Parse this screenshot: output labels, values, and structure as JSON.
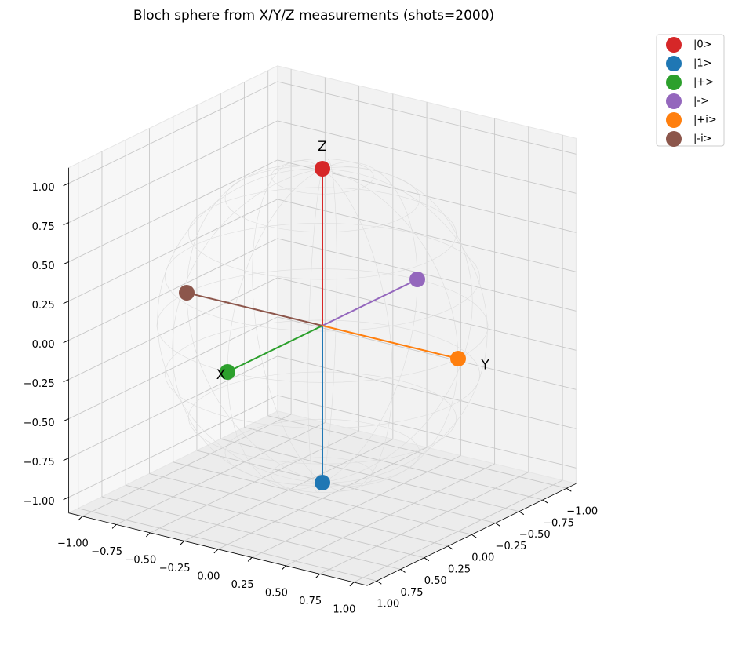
{
  "chart_data": {
    "type": "scatter3d",
    "title": "Bloch sphere from X/Y/Z measurements (shots=2000)",
    "axis_labels": [
      "X",
      "Y",
      "Z"
    ],
    "series": [
      {
        "name": "|0>",
        "color": "#d62728",
        "x": [
          0
        ],
        "y": [
          0
        ],
        "z": [
          1
        ]
      },
      {
        "name": "|1>",
        "color": "#1f77b4",
        "x": [
          0
        ],
        "y": [
          0
        ],
        "z": [
          -1
        ]
      },
      {
        "name": "|+>",
        "color": "#2ca02c",
        "x": [
          1
        ],
        "y": [
          0
        ],
        "z": [
          0
        ]
      },
      {
        "name": "|->",
        "color": "#9467bd",
        "x": [
          -1
        ],
        "y": [
          0
        ],
        "z": [
          0
        ]
      },
      {
        "name": "|+i>",
        "color": "#ff7f0e",
        "x": [
          0
        ],
        "y": [
          1
        ],
        "z": [
          0
        ]
      },
      {
        "name": "|-i>",
        "color": "#8c564b",
        "x": [
          0
        ],
        "y": [
          -1
        ],
        "z": [
          0
        ]
      }
    ],
    "xlim": [
      -1.1,
      1.1
    ],
    "ylim": [
      -1.1,
      1.1
    ],
    "zlim": [
      -1.1,
      1.1
    ],
    "xticks": [
      {
        "value": -1,
        "label": "−1.00"
      },
      {
        "value": -0.75,
        "label": "−0.75"
      },
      {
        "value": -0.5,
        "label": "−0.50"
      },
      {
        "value": -0.25,
        "label": "−0.25"
      },
      {
        "value": 0,
        "label": "0.00"
      },
      {
        "value": 0.25,
        "label": "0.25"
      },
      {
        "value": 0.5,
        "label": "0.50"
      },
      {
        "value": 0.75,
        "label": "0.75"
      },
      {
        "value": 1,
        "label": "1.00"
      }
    ],
    "yticks": [
      {
        "value": -1,
        "label": "−1.00"
      },
      {
        "value": -0.75,
        "label": "−0.75"
      },
      {
        "value": -0.5,
        "label": "−0.50"
      },
      {
        "value": -0.25,
        "label": "−0.25"
      },
      {
        "value": 0,
        "label": "0.00"
      },
      {
        "value": 0.25,
        "label": "0.25"
      },
      {
        "value": 0.5,
        "label": "0.50"
      },
      {
        "value": 0.75,
        "label": "0.75"
      },
      {
        "value": 1,
        "label": "1.00"
      }
    ],
    "zticks": [
      {
        "value": -1,
        "label": "−1.00"
      },
      {
        "value": -0.75,
        "label": "−0.75"
      },
      {
        "value": -0.5,
        "label": "−0.50"
      },
      {
        "value": -0.25,
        "label": "−0.25"
      },
      {
        "value": 0,
        "label": "0.00"
      },
      {
        "value": 0.25,
        "label": "0.25"
      },
      {
        "value": 0.5,
        "label": "0.50"
      },
      {
        "value": 0.75,
        "label": "0.75"
      },
      {
        "value": 1,
        "label": "1.00"
      }
    ],
    "grid": true,
    "legend": "upper right"
  }
}
